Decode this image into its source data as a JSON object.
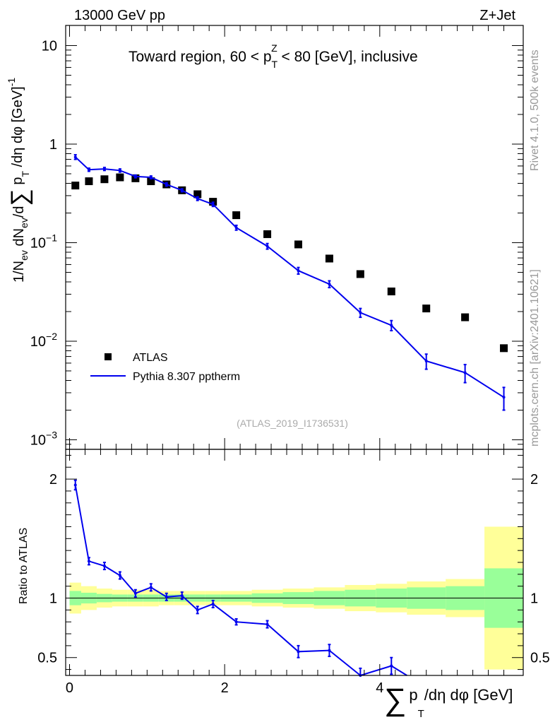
{
  "header": {
    "energy_label": "13000 GeV pp",
    "process_label": "Z+Jet"
  },
  "side_labels": {
    "rivet": "Rivet 4.1.0,  500k events",
    "mcplots": "mcplots.cern.ch [arXiv:2401.10621]"
  },
  "chart_data": [
    {
      "type": "scatter",
      "panel": "main",
      "title": "Toward region, 60 < p_T^Z < 80 [GeV], inclusive",
      "title_parts": {
        "pre": "Toward region, 60 < p",
        "sup": "Z",
        "sub": "T",
        "post": " < 80 [GeV], inclusive"
      },
      "ylabel": "1/N_ev dN_ev/d∑p_T/dη dφ [GeV]^-1",
      "xlabel": "∑ p_T/dη dφ [GeV]",
      "yscale": "log",
      "ylim": [
        0.0008,
        16
      ],
      "xlim": [
        -0.05,
        5.85
      ],
      "ytick_labels": [
        {
          "value": 10,
          "base": "10",
          "exp": ""
        },
        {
          "value": 1,
          "base": "1",
          "exp": ""
        },
        {
          "value": 0.1,
          "base": "10",
          "exp": "−1"
        },
        {
          "value": 0.01,
          "base": "10",
          "exp": "−2"
        },
        {
          "value": 0.001,
          "base": "10",
          "exp": "−3"
        }
      ],
      "reference_tag": "(ATLAS_2019_I1736531)",
      "legend": [
        {
          "name": "ATLAS",
          "marker": "square",
          "color": "#000000"
        },
        {
          "name": "Pythia 8.307 pptherm",
          "marker": "line",
          "color": "#0000ee"
        }
      ],
      "series": [
        {
          "name": "ATLAS",
          "x": [
            0.075,
            0.25,
            0.45,
            0.65,
            0.85,
            1.05,
            1.25,
            1.45,
            1.65,
            1.85,
            2.15,
            2.55,
            2.95,
            3.35,
            3.75,
            4.15,
            4.6,
            5.1,
            5.6
          ],
          "values": [
            0.38,
            0.42,
            0.44,
            0.46,
            0.45,
            0.42,
            0.39,
            0.34,
            0.31,
            0.26,
            0.19,
            0.122,
            0.096,
            0.069,
            0.048,
            0.032,
            0.0215,
            0.0175,
            0.0085
          ]
        },
        {
          "name": "Pythia 8.307 pptherm",
          "x": [
            0.075,
            0.25,
            0.45,
            0.65,
            0.85,
            1.05,
            1.25,
            1.45,
            1.65,
            1.85,
            2.15,
            2.55,
            2.95,
            3.35,
            3.75,
            4.15,
            4.6,
            5.1,
            5.6
          ],
          "values": [
            0.74,
            0.55,
            0.56,
            0.54,
            0.47,
            0.46,
            0.39,
            0.34,
            0.28,
            0.245,
            0.142,
            0.092,
            0.052,
            0.038,
            0.0195,
            0.0145,
            0.0063,
            0.0048,
            0.0027
          ],
          "errors": [
            0.04,
            0.02,
            0.02,
            0.02,
            0.015,
            0.015,
            0.015,
            0.012,
            0.012,
            0.012,
            0.008,
            0.006,
            0.004,
            0.003,
            0.002,
            0.0017,
            0.0011,
            0.001,
            0.0007
          ]
        }
      ]
    },
    {
      "type": "line",
      "panel": "ratio",
      "ylabel": "Ratio to ATLAS",
      "ylim": [
        0.35,
        2.25
      ],
      "xlim": [
        -0.05,
        5.85
      ],
      "yticks": [
        0.5,
        1,
        2
      ],
      "ytick_labels": [
        "0.5",
        "1",
        "2"
      ],
      "xticks": [
        0,
        2,
        4
      ],
      "xtick_labels": [
        "0",
        "2",
        "4"
      ],
      "bands": {
        "edges": [
          0.0,
          0.15,
          0.35,
          0.55,
          0.75,
          0.95,
          1.15,
          1.35,
          1.55,
          1.75,
          1.95,
          2.35,
          2.75,
          3.15,
          3.55,
          3.95,
          4.35,
          4.85,
          5.35,
          5.85
        ],
        "yellow_half": [
          0.13,
          0.1,
          0.08,
          0.07,
          0.07,
          0.07,
          0.06,
          0.06,
          0.06,
          0.06,
          0.06,
          0.07,
          0.08,
          0.09,
          0.11,
          0.12,
          0.14,
          0.16,
          0.6
        ],
        "green_half": [
          0.06,
          0.045,
          0.035,
          0.03,
          0.03,
          0.03,
          0.03,
          0.03,
          0.03,
          0.03,
          0.03,
          0.04,
          0.05,
          0.06,
          0.07,
          0.08,
          0.09,
          0.1,
          0.25
        ],
        "yellow_color": "#ffff99",
        "green_color": "#99ff99"
      },
      "series": [
        {
          "name": "Pythia 8.307 pptherm / ATLAS",
          "x": [
            0.075,
            0.25,
            0.45,
            0.65,
            0.85,
            1.05,
            1.25,
            1.45,
            1.65,
            1.85,
            2.15,
            2.55,
            2.95,
            3.35,
            3.75,
            4.15,
            4.35
          ],
          "values": [
            1.95,
            1.31,
            1.27,
            1.19,
            1.04,
            1.09,
            1.01,
            1.02,
            0.9,
            0.95,
            0.8,
            0.78,
            0.55,
            0.56,
            0.35,
            0.43,
            0.35
          ],
          "errors": [
            0.04,
            0.03,
            0.03,
            0.03,
            0.03,
            0.03,
            0.03,
            0.03,
            0.03,
            0.03,
            0.025,
            0.03,
            0.05,
            0.05,
            0.06,
            0.07,
            0.0
          ],
          "color": "#0000ee"
        }
      ]
    }
  ]
}
